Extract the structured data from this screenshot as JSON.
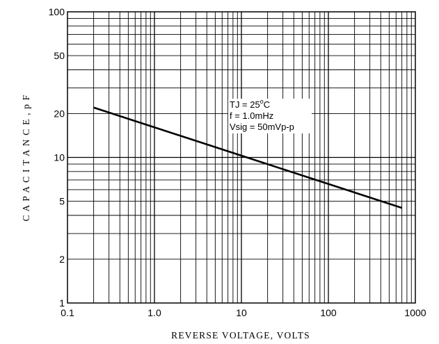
{
  "chart_data": {
    "type": "line",
    "title": "",
    "xlabel": "REVERSE VOLTAGE,  VOLTS",
    "ylabel": "C A P A C I T A N C E ,  p F",
    "x_scale": "log",
    "y_scale": "log",
    "xlim": [
      0.1,
      1000
    ],
    "ylim": [
      1,
      100
    ],
    "grid": true,
    "x_ticks": [
      "0.1",
      "1.0",
      "10",
      "100",
      "1000"
    ],
    "y_ticks": [
      {
        "value": 1,
        "label": "1"
      },
      {
        "value": 2,
        "label": "2"
      },
      {
        "value": 5,
        "label": "5"
      },
      {
        "value": 10,
        "label": "10"
      },
      {
        "value": 20,
        "label": "20"
      },
      {
        "value": 50,
        "label": "50"
      },
      {
        "value": 100,
        "label": "100"
      }
    ],
    "series": [
      {
        "x": [
          0.2,
          700
        ],
        "y": [
          22,
          4.5
        ]
      }
    ],
    "annotations": {
      "line1_prefix": "TJ = 25",
      "line1_sup": "o",
      "line1_suffix": "C",
      "line2": "f = 1.0mHz",
      "line3": "Vsig = 50mVp-p"
    }
  }
}
